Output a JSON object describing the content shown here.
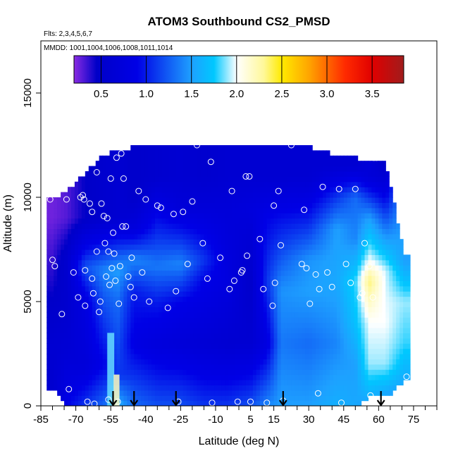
{
  "chart_data": {
    "type": "heatmap",
    "title": "ATOM3 Southbound CS2_PMSD",
    "annotations": [
      "Flts: 2,3,4,5,6,7",
      "MMDD: 1001,1004,1006,1008,1011,1014"
    ],
    "xlabel": "Latitude (deg N)",
    "ylabel": "Altitude (m)",
    "xlim": [
      -85,
      85
    ],
    "ylim": [
      0,
      17500
    ],
    "x_ticks_labeled": [
      -85,
      -70,
      -55,
      -40,
      -25,
      -10,
      5,
      15,
      30,
      45,
      60,
      75
    ],
    "x_ticks_minor": [
      -80,
      -75,
      -65,
      -60,
      -50,
      -45,
      -35,
      -30,
      -20,
      -15,
      -5,
      0,
      10,
      20,
      25,
      35,
      40,
      50,
      55,
      65,
      70,
      80,
      85
    ],
    "y_ticks": [
      0,
      5000,
      10000,
      15000
    ],
    "colorbar": {
      "range": [
        0.2,
        3.85
      ],
      "ticks": [
        0.5,
        1.0,
        1.5,
        2.0,
        2.5,
        3.0,
        3.5
      ],
      "tick_labels": [
        "0.5",
        "1.0",
        "1.5",
        "2.0",
        "2.5",
        "3.0",
        "3.5"
      ],
      "stops": [
        {
          "v": 0.2,
          "color": "#8a2be2"
        },
        {
          "v": 0.45,
          "color": "#0000c8"
        },
        {
          "v": 0.9,
          "color": "#0000e6"
        },
        {
          "v": 1.5,
          "color": "#1ea0ff"
        },
        {
          "v": 1.75,
          "color": "#00c8ff"
        },
        {
          "v": 2.0,
          "color": "#ffffff"
        },
        {
          "v": 2.3,
          "color": "#fff89a"
        },
        {
          "v": 2.5,
          "color": "#ffea00"
        },
        {
          "v": 2.8,
          "color": "#ffa500"
        },
        {
          "v": 3.2,
          "color": "#ff2a00"
        },
        {
          "v": 3.5,
          "color": "#e00000"
        },
        {
          "v": 3.85,
          "color": "#a01c1c"
        }
      ]
    },
    "field": {
      "columns": [
        {
          "x": -80,
          "ylo": 800,
          "yhi": 9900,
          "layers": [
            [
              0,
              0.55
            ],
            [
              3000,
              0.6
            ],
            [
              6000,
              0.4
            ],
            [
              9000,
              0.25
            ]
          ]
        },
        {
          "x": -74,
          "ylo": 0,
          "yhi": 10300,
          "layers": [
            [
              0,
              0.9
            ],
            [
              2500,
              0.65
            ],
            [
              5000,
              0.55
            ],
            [
              7000,
              0.55
            ],
            [
              9000,
              0.3
            ]
          ]
        },
        {
          "x": -66,
          "ylo": 0,
          "yhi": 11200,
          "layers": [
            [
              0,
              1.1
            ],
            [
              2000,
              0.7
            ],
            [
              5000,
              0.8
            ],
            [
              6700,
              1.2
            ],
            [
              9000,
              0.45
            ]
          ]
        },
        {
          "x": -58,
          "ylo": 0,
          "yhi": 12000,
          "layers": [
            [
              0,
              1.3
            ],
            [
              2000,
              0.9
            ],
            [
              5000,
              1.2
            ],
            [
              6500,
              1.4
            ],
            [
              9000,
              0.55
            ]
          ]
        },
        {
          "x": -52,
          "ylo": 0,
          "yhi": 12300,
          "layers": [
            [
              0,
              1.6
            ],
            [
              1500,
              1.1
            ],
            [
              5000,
              1.3
            ],
            [
              6500,
              1.5
            ],
            [
              9000,
              0.6
            ]
          ]
        },
        {
          "x": -45,
          "ylo": 0,
          "yhi": 12400,
          "layers": [
            [
              0,
              1.3
            ],
            [
              3000,
              0.85
            ],
            [
              5500,
              1.0
            ],
            [
              7000,
              1.4
            ],
            [
              8500,
              0.75
            ],
            [
              10000,
              0.5
            ]
          ]
        },
        {
          "x": -35,
          "ylo": 0,
          "yhi": 12400,
          "layers": [
            [
              0,
              1.2
            ],
            [
              3000,
              0.75
            ],
            [
              5000,
              1.0
            ],
            [
              6700,
              1.35
            ],
            [
              9500,
              0.85
            ],
            [
              11000,
              0.55
            ]
          ]
        },
        {
          "x": -25,
          "ylo": 0,
          "yhi": 12400,
          "layers": [
            [
              0,
              1.2
            ],
            [
              3000,
              0.7
            ],
            [
              5000,
              0.9
            ],
            [
              6800,
              1.4
            ],
            [
              9500,
              0.7
            ],
            [
              11000,
              0.6
            ]
          ]
        },
        {
          "x": -15,
          "ylo": 0,
          "yhi": 12400,
          "layers": [
            [
              0,
              1.1
            ],
            [
              3000,
              0.65
            ],
            [
              6000,
              0.9
            ],
            [
              7000,
              1.1
            ],
            [
              9500,
              0.7
            ],
            [
              11000,
              0.55
            ]
          ]
        },
        {
          "x": -5,
          "ylo": 0,
          "yhi": 12400,
          "layers": [
            [
              0,
              1.1
            ],
            [
              3000,
              0.6
            ],
            [
              6000,
              0.8
            ],
            [
              9500,
              0.7
            ],
            [
              11000,
              0.6
            ]
          ]
        },
        {
          "x": 5,
          "ylo": 0,
          "yhi": 12400,
          "layers": [
            [
              0,
              1.2
            ],
            [
              3000,
              0.6
            ],
            [
              6000,
              0.5
            ],
            [
              9500,
              0.75
            ],
            [
              11000,
              0.6
            ]
          ]
        },
        {
          "x": 12,
          "ylo": 0,
          "yhi": 12400,
          "layers": [
            [
              0,
              1.4
            ],
            [
              3000,
              0.8
            ],
            [
              6000,
              1.1
            ],
            [
              9000,
              0.9
            ],
            [
              11000,
              0.6
            ]
          ]
        },
        {
          "x": 18,
          "ylo": 0,
          "yhi": 12400,
          "layers": [
            [
              0,
              1.5
            ],
            [
              3000,
              1.35
            ],
            [
              5500,
              1.45
            ],
            [
              9000,
              0.95
            ],
            [
              11000,
              0.6
            ]
          ]
        },
        {
          "x": 30,
          "ylo": 0,
          "yhi": 12400,
          "layers": [
            [
              0,
              1.5
            ],
            [
              3000,
              1.3
            ],
            [
              5500,
              1.5
            ],
            [
              7000,
              1.45
            ],
            [
              9000,
              1.0
            ],
            [
              11000,
              0.6
            ]
          ]
        },
        {
          "x": 42,
          "ylo": 0,
          "yhi": 12000,
          "layers": [
            [
              0,
              1.6
            ],
            [
              3000,
              1.4
            ],
            [
              6000,
              1.55
            ],
            [
              8500,
              1.5
            ],
            [
              10000,
              1.1
            ],
            [
              11500,
              0.6
            ]
          ]
        },
        {
          "x": 50,
          "ylo": 0,
          "yhi": 11900,
          "layers": [
            [
              0,
              1.55
            ],
            [
              2000,
              1.5
            ],
            [
              4000,
              1.7
            ],
            [
              6000,
              1.8
            ],
            [
              8000,
              1.4
            ],
            [
              10000,
              1.3
            ],
            [
              11500,
              0.6
            ]
          ]
        },
        {
          "x": 56,
          "ylo": 400,
          "yhi": 11800,
          "layers": [
            [
              0,
              1.5
            ],
            [
              2000,
              1.9
            ],
            [
              4000,
              2.0
            ],
            [
              6000,
              2.35
            ],
            [
              7000,
              2.0
            ],
            [
              9000,
              1.5
            ],
            [
              11000,
              0.7
            ]
          ]
        },
        {
          "x": 63,
          "ylo": 400,
          "yhi": 11800,
          "layers": [
            [
              0,
              1.4
            ],
            [
              2000,
              1.9
            ],
            [
              4000,
              2.0
            ],
            [
              6500,
              1.95
            ],
            [
              8000,
              1.5
            ],
            [
              10000,
              0.9
            ],
            [
              11500,
              0.5
            ]
          ]
        },
        {
          "x": 71,
          "ylo": 1200,
          "yhi": 7200,
          "layers": [
            [
              0,
              1.4
            ],
            [
              3000,
              1.8
            ],
            [
              5000,
              1.9
            ],
            [
              7000,
              1.5
            ]
          ]
        }
      ],
      "vertical_streaks": [
        {
          "x": -55,
          "width": 3,
          "ylo": 0,
          "yhi": 3500,
          "v": 1.85
        },
        {
          "x": -52.5,
          "width": 2.5,
          "ylo": 0,
          "yhi": 1500,
          "v": 2.2
        }
      ]
    },
    "points": [
      {
        "x": -81,
        "y": 9900
      },
      {
        "x": -80,
        "y": 7000
      },
      {
        "x": -79,
        "y": 6700
      },
      {
        "x": -76,
        "y": 4400
      },
      {
        "x": -74,
        "y": 9900
      },
      {
        "x": -73,
        "y": 800
      },
      {
        "x": -71,
        "y": 6400
      },
      {
        "x": -69,
        "y": 5200
      },
      {
        "x": -68,
        "y": 10000
      },
      {
        "x": -67,
        "y": 10100
      },
      {
        "x": -66.5,
        "y": 9900
      },
      {
        "x": -66,
        "y": 6500
      },
      {
        "x": -66,
        "y": 4800
      },
      {
        "x": -65,
        "y": 200
      },
      {
        "x": -64,
        "y": 9700
      },
      {
        "x": -63,
        "y": 9300
      },
      {
        "x": -63,
        "y": 6100
      },
      {
        "x": -62.5,
        "y": 5400
      },
      {
        "x": -62,
        "y": 100
      },
      {
        "x": -61,
        "y": 11200
      },
      {
        "x": -61,
        "y": 7400
      },
      {
        "x": -60,
        "y": 4500
      },
      {
        "x": -59.5,
        "y": 5000
      },
      {
        "x": -59,
        "y": 9700
      },
      {
        "x": -58,
        "y": 9100
      },
      {
        "x": -57.5,
        "y": 7800
      },
      {
        "x": -57,
        "y": 6200
      },
      {
        "x": -56.5,
        "y": 9000
      },
      {
        "x": -56,
        "y": 7400
      },
      {
        "x": -56,
        "y": 300
      },
      {
        "x": -55.5,
        "y": 5800
      },
      {
        "x": -55,
        "y": 10900
      },
      {
        "x": -54.5,
        "y": 6600
      },
      {
        "x": -54,
        "y": 8300
      },
      {
        "x": -53.5,
        "y": 7300
      },
      {
        "x": -53,
        "y": 6000
      },
      {
        "x": -52.5,
        "y": 11900
      },
      {
        "x": -52,
        "y": 200
      },
      {
        "x": -51.5,
        "y": 4900
      },
      {
        "x": -51,
        "y": 6700
      },
      {
        "x": -50.5,
        "y": 12100
      },
      {
        "x": -50,
        "y": 8600
      },
      {
        "x": -49.5,
        "y": 10900
      },
      {
        "x": -48.5,
        "y": 8600
      },
      {
        "x": -47.5,
        "y": 6200
      },
      {
        "x": -46.5,
        "y": 5700
      },
      {
        "x": -46,
        "y": 7100
      },
      {
        "x": -45,
        "y": 5200
      },
      {
        "x": -43,
        "y": 10300
      },
      {
        "x": -41.5,
        "y": 6400
      },
      {
        "x": -40,
        "y": 9900
      },
      {
        "x": -38.5,
        "y": 5000
      },
      {
        "x": -35,
        "y": 9600
      },
      {
        "x": -33.5,
        "y": 9500
      },
      {
        "x": -30.5,
        "y": 4700
      },
      {
        "x": -28,
        "y": 9200
      },
      {
        "x": -27,
        "y": 5500
      },
      {
        "x": -26,
        "y": 200
      },
      {
        "x": -24,
        "y": 9300
      },
      {
        "x": -22,
        "y": 6800
      },
      {
        "x": -20,
        "y": 9800
      },
      {
        "x": -18,
        "y": 12500
      },
      {
        "x": -15.5,
        "y": 7800
      },
      {
        "x": -13.5,
        "y": 6100
      },
      {
        "x": -12,
        "y": 11700
      },
      {
        "x": -11.5,
        "y": 150
      },
      {
        "x": -8,
        "y": 7100
      },
      {
        "x": -4,
        "y": 5600
      },
      {
        "x": -3,
        "y": 10300
      },
      {
        "x": -2,
        "y": 6000
      },
      {
        "x": -0.5,
        "y": 200
      },
      {
        "x": 1,
        "y": 6400
      },
      {
        "x": 1.5,
        "y": 6500
      },
      {
        "x": 3,
        "y": 11000
      },
      {
        "x": 3.5,
        "y": 7200
      },
      {
        "x": 4.5,
        "y": 11000
      },
      {
        "x": 5,
        "y": 200
      },
      {
        "x": 9,
        "y": 8000
      },
      {
        "x": 10.5,
        "y": 5600
      },
      {
        "x": 12,
        "y": 150
      },
      {
        "x": 14.5,
        "y": 4800
      },
      {
        "x": 15,
        "y": 9600
      },
      {
        "x": 15.5,
        "y": 5900
      },
      {
        "x": 17,
        "y": 10300
      },
      {
        "x": 18,
        "y": 7700
      },
      {
        "x": 19,
        "y": 250
      },
      {
        "x": 22.5,
        "y": 12500
      },
      {
        "x": 27,
        "y": 6800
      },
      {
        "x": 28,
        "y": 9400
      },
      {
        "x": 29,
        "y": 6600
      },
      {
        "x": 30.5,
        "y": 4900
      },
      {
        "x": 33,
        "y": 6300
      },
      {
        "x": 34,
        "y": 600
      },
      {
        "x": 34.5,
        "y": 5600
      },
      {
        "x": 36,
        "y": 10500
      },
      {
        "x": 38,
        "y": 6400
      },
      {
        "x": 40,
        "y": 5700
      },
      {
        "x": 43,
        "y": 10400
      },
      {
        "x": 44,
        "y": 150
      },
      {
        "x": 46,
        "y": 6800
      },
      {
        "x": 48,
        "y": 5900
      },
      {
        "x": 50,
        "y": 10400
      },
      {
        "x": 52,
        "y": 5200
      },
      {
        "x": 53,
        "y": 5400
      },
      {
        "x": 54,
        "y": 7800
      },
      {
        "x": 56,
        "y": 6700
      },
      {
        "x": 56.5,
        "y": 500
      },
      {
        "x": 57.5,
        "y": 5200
      },
      {
        "x": 58,
        "y": 11900
      },
      {
        "x": 59,
        "y": 11900
      },
      {
        "x": 64,
        "y": 12000
      },
      {
        "x": 65,
        "y": 11900
      },
      {
        "x": 72,
        "y": 1400
      }
    ],
    "arrows_x": [
      -54,
      -45,
      -27,
      19,
      61
    ]
  }
}
